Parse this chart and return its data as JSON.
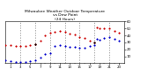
{
  "title": "Milwaukee Weather Outdoor Temperature\nvs Dew Point\n(24 Hours)",
  "title_fontsize": 3.2,
  "background_color": "#ffffff",
  "temp_color": "#cc0000",
  "dew_color": "#0000cc",
  "black_color": "#000000",
  "grid_color": "#888888",
  "xlim": [
    0,
    24
  ],
  "ylim": [
    0,
    60
  ],
  "ytick_vals": [
    10,
    20,
    30,
    40,
    50,
    60
  ],
  "xtick_vals": [
    1,
    3,
    5,
    7,
    9,
    11,
    13,
    15,
    17,
    19,
    21,
    23
  ],
  "vgrid_x": [
    3,
    6,
    9,
    12,
    15,
    18,
    21,
    24
  ],
  "temp_x": [
    0,
    1,
    2,
    3,
    4,
    5,
    6,
    7,
    8,
    9,
    10,
    11,
    12,
    13,
    14,
    15,
    16,
    17,
    18,
    18.5,
    19,
    20,
    21,
    22,
    23
  ],
  "temp_y": [
    26,
    26,
    25,
    25,
    25,
    26,
    27,
    32,
    40,
    44,
    45,
    46,
    45,
    43,
    41,
    38,
    36,
    33,
    30,
    52,
    50,
    50,
    50,
    47,
    44
  ],
  "dew_x": [
    0,
    1,
    2,
    3,
    4,
    5,
    6,
    7,
    8,
    9,
    10,
    11,
    12,
    13,
    14,
    15,
    16,
    17,
    18,
    18.5,
    19,
    20,
    21,
    22,
    23
  ],
  "dew_y": [
    4,
    3,
    2,
    2,
    2,
    3,
    4,
    8,
    13,
    15,
    25,
    26,
    25,
    24,
    23,
    22,
    22,
    25,
    26,
    35,
    34,
    36,
    37,
    35,
    33
  ],
  "black_x": [
    6,
    18
  ],
  "black_y": [
    27,
    30
  ]
}
